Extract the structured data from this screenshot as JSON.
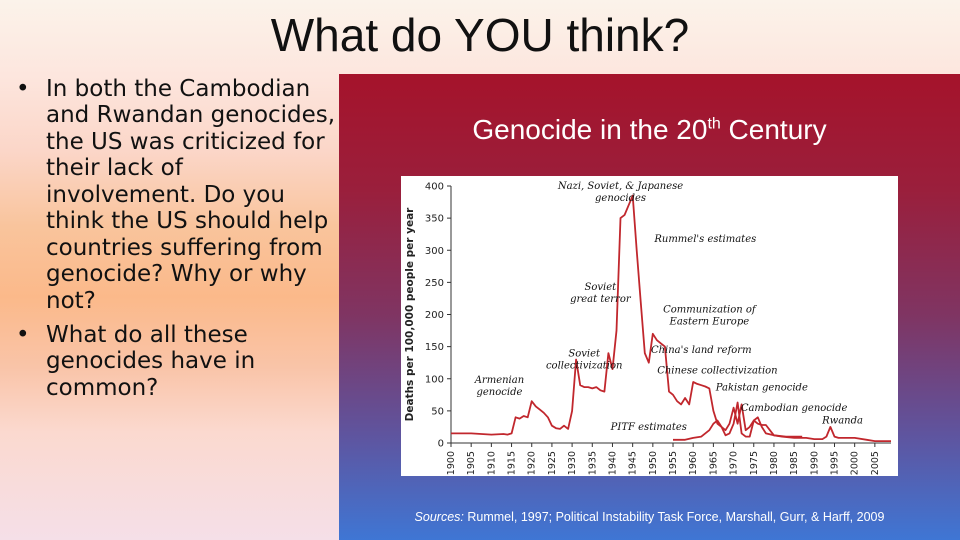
{
  "slide": {
    "title": "What do YOU think?",
    "bullets": [
      "In both the Cambodian and Rwandan genocides, the US was criticized for their lack of involvement. Do you think the US should help countries suffering from genocide? Why or why not?",
      "What do all these genocides have in common?"
    ]
  },
  "figure": {
    "title_main": "Genocide in the 20",
    "title_sup": "th",
    "title_end": " Century",
    "sources_label": "Sources:",
    "sources_text": " Rummel, 1997; Political Instability Task Force, Marshall, Gurr, & Harff, 2009"
  },
  "colors": {
    "series": "#c1272d",
    "axis": "#333333"
  },
  "chart_data": {
    "type": "line",
    "title": "Genocide in the 20th Century",
    "xlabel": "",
    "ylabel": "Deaths per 100,000 people per year",
    "xlim": [
      1900,
      2009
    ],
    "ylim": [
      0,
      400
    ],
    "x_ticks": [
      1900,
      1905,
      1910,
      1915,
      1920,
      1925,
      1930,
      1935,
      1940,
      1945,
      1950,
      1955,
      1960,
      1965,
      1970,
      1975,
      1980,
      1985,
      1990,
      1995,
      2000,
      2005
    ],
    "y_ticks": [
      0,
      50,
      100,
      150,
      200,
      250,
      300,
      350,
      400
    ],
    "grid": false,
    "series": [
      {
        "name": "Rummel's estimates",
        "x": [
          1900,
          1905,
          1910,
          1913,
          1914,
          1915,
          1916,
          1917,
          1918,
          1919,
          1920,
          1921,
          1922,
          1923,
          1924,
          1925,
          1926,
          1927,
          1928,
          1929,
          1930,
          1931,
          1932,
          1933,
          1934,
          1935,
          1936,
          1937,
          1938,
          1939,
          1940,
          1941,
          1942,
          1943,
          1944,
          1945,
          1946,
          1947,
          1948,
          1949,
          1950,
          1951,
          1952,
          1953,
          1954,
          1955,
          1956,
          1957,
          1958,
          1959,
          1960,
          1961,
          1962,
          1963,
          1964,
          1965,
          1966,
          1967,
          1968,
          1969,
          1970,
          1971,
          1972,
          1973,
          1974,
          1975,
          1976,
          1977,
          1978,
          1979,
          1980,
          1983,
          1985,
          1987
        ],
        "y": [
          15,
          15,
          13,
          14,
          13,
          15,
          40,
          38,
          42,
          40,
          65,
          57,
          52,
          47,
          40,
          27,
          23,
          22,
          27,
          22,
          50,
          130,
          90,
          87,
          87,
          85,
          87,
          82,
          80,
          140,
          115,
          175,
          350,
          355,
          370,
          385,
          300,
          220,
          140,
          125,
          170,
          160,
          155,
          150,
          80,
          75,
          65,
          60,
          70,
          60,
          95,
          92,
          90,
          88,
          85,
          50,
          30,
          25,
          20,
          30,
          55,
          30,
          60,
          20,
          25,
          35,
          30,
          28,
          28,
          20,
          12,
          10,
          10,
          10
        ]
      },
      {
        "name": "PITF estimates",
        "x": [
          1955,
          1958,
          1960,
          1962,
          1964,
          1965,
          1966,
          1967,
          1968,
          1969,
          1970,
          1971,
          1972,
          1973,
          1974,
          1975,
          1976,
          1977,
          1978,
          1980,
          1982,
          1985,
          1988,
          1990,
          1992,
          1993,
          1994,
          1995,
          1996,
          1998,
          2000,
          2003,
          2005,
          2009
        ],
        "y": [
          5,
          5,
          8,
          10,
          20,
          30,
          35,
          25,
          12,
          15,
          30,
          63,
          15,
          10,
          10,
          35,
          40,
          25,
          15,
          12,
          10,
          8,
          8,
          6,
          6,
          10,
          25,
          10,
          8,
          8,
          8,
          5,
          3,
          3
        ]
      }
    ],
    "annotations": [
      {
        "text": [
          "Nazi, Soviet, & Japanese",
          "genocides"
        ],
        "x": 1942,
        "y": 395
      },
      {
        "text": [
          "Rummel's estimates"
        ],
        "x": 1963,
        "y": 313
      },
      {
        "text": [
          "Soviet",
          "great terror"
        ],
        "x": 1937,
        "y": 238
      },
      {
        "text": [
          "Communization of",
          "Eastern Europe"
        ],
        "x": 1964,
        "y": 203
      },
      {
        "text": [
          "China's land reform"
        ],
        "x": 1962,
        "y": 140
      },
      {
        "text": [
          "Soviet",
          "collectivization"
        ],
        "x": 1933,
        "y": 135
      },
      {
        "text": [
          "Chinese collectivization"
        ],
        "x": 1966,
        "y": 108
      },
      {
        "text": [
          "Armenian",
          "genocide"
        ],
        "x": 1912,
        "y": 93
      },
      {
        "text": [
          "Pakistan genocide"
        ],
        "x": 1977,
        "y": 82
      },
      {
        "text": [
          "Cambodian genocide"
        ],
        "x": 1985,
        "y": 50
      },
      {
        "text": [
          "Rwanda"
        ],
        "x": 1997,
        "y": 30
      },
      {
        "text": [
          "PITF estimates"
        ],
        "x": 1949,
        "y": 20
      }
    ]
  }
}
